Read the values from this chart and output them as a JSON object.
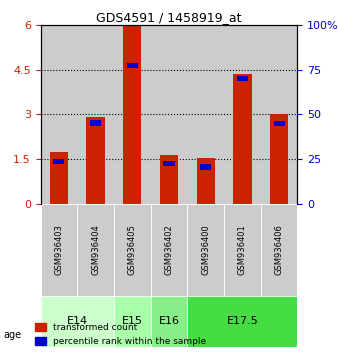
{
  "title": "GDS4591 / 1458919_at",
  "samples": [
    "GSM936403",
    "GSM936404",
    "GSM936405",
    "GSM936402",
    "GSM936400",
    "GSM936401",
    "GSM936406"
  ],
  "red_values": [
    1.72,
    2.92,
    6.0,
    1.65,
    1.55,
    4.35,
    3.0
  ],
  "blue_values": [
    1.5,
    2.8,
    4.72,
    1.44,
    1.32,
    4.28,
    2.78
  ],
  "blue_pct": [
    25,
    46.7,
    78.7,
    24,
    22,
    71.3,
    46.3
  ],
  "age_groups": [
    {
      "label": "E14",
      "start": 0,
      "end": 2,
      "color": "#ccffcc"
    },
    {
      "label": "E15",
      "start": 2,
      "end": 3,
      "color": "#aaffaa"
    },
    {
      "label": "E16",
      "start": 3,
      "end": 4,
      "color": "#88ee88"
    },
    {
      "label": "E17.5",
      "start": 4,
      "end": 7,
      "color": "#44dd44"
    }
  ],
  "ylim_left": [
    0,
    6
  ],
  "ylim_right": [
    0,
    100
  ],
  "yticks_left": [
    0,
    1.5,
    3,
    4.5,
    6
  ],
  "yticks_right": [
    0,
    25,
    50,
    75,
    100
  ],
  "ytick_labels_left": [
    "0",
    "1.5",
    "3",
    "4.5",
    "6"
  ],
  "ytick_labels_right": [
    "0",
    "25",
    "50",
    "75",
    "100%"
  ],
  "background_color": "#ffffff",
  "bar_bg_color": "#cccccc",
  "red_color": "#cc2200",
  "blue_color": "#0000cc",
  "grid_color": "#000000",
  "tick_label_color_left": "#cc2200",
  "tick_label_color_right": "#0000cc"
}
